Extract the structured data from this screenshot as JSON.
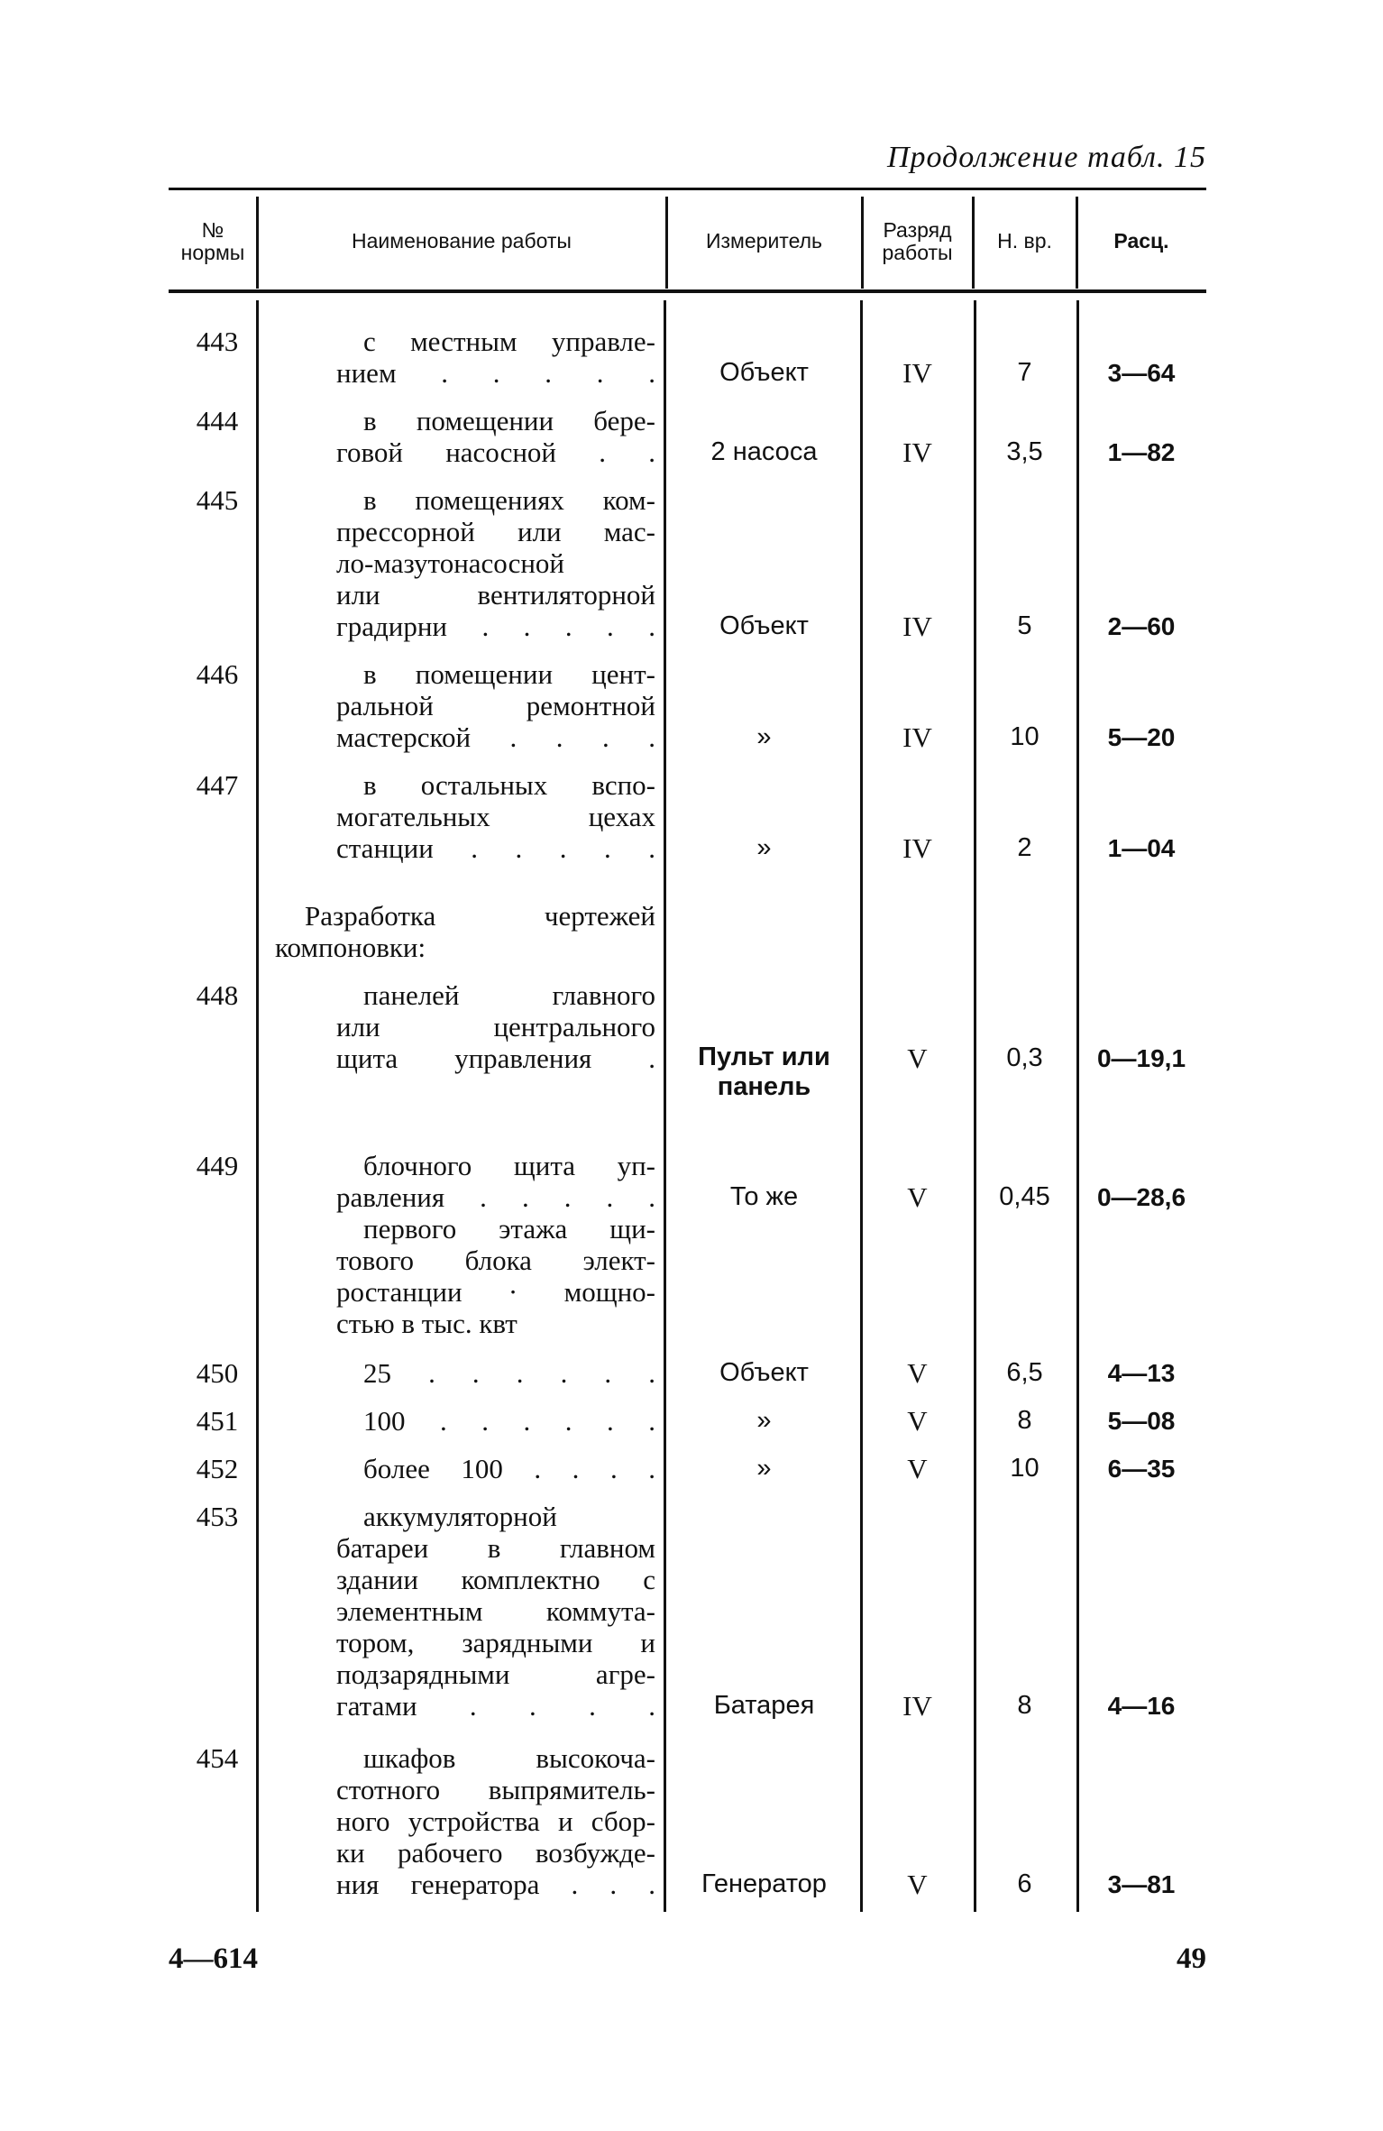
{
  "caption": "Продолжение табл. 15",
  "columns": {
    "num": [
      "№",
      "нормы"
    ],
    "name": "Наименование работы",
    "measure": "Измеритель",
    "grade": [
      "Разряд",
      "работы"
    ],
    "time": "Н. вр.",
    "rate": "Расц."
  },
  "rows": [
    {
      "num": "443",
      "desc": [
        "с местным управле-",
        "нием . . . . ."
      ],
      "measure": [
        "Объект"
      ],
      "grade": "IV",
      "time": "7",
      "rate": "3—64"
    },
    {
      "num": "444",
      "desc": [
        "в помещении бере-",
        "говой насосной . ."
      ],
      "measure": [
        "2 насоса"
      ],
      "grade": "IV",
      "time": "3,5",
      "rate": "1—82"
    },
    {
      "num": "445",
      "desc": [
        "в помещениях ком-",
        "прессорной или мас-",
        "ло-мазутонасосной",
        "или вентиляторной",
        "градирни . . . . ."
      ],
      "measure": [
        "Объект"
      ],
      "grade": "IV",
      "time": "5",
      "rate": "2—60"
    },
    {
      "num": "446",
      "desc": [
        "в помещении цент-",
        "ральной ремонтной",
        "мастерской . . . ."
      ],
      "measure": [
        "»"
      ],
      "grade": "IV",
      "time": "10",
      "rate": "5—20"
    },
    {
      "num": "447",
      "desc": [
        "в остальных вспо-",
        "могательных цехах",
        "станции . . . . ."
      ],
      "measure": [
        "»"
      ],
      "grade": "IV",
      "time": "2",
      "rate": "1—04"
    },
    {
      "num": "",
      "desc": [
        "Разработка чертежей",
        "компоновки:"
      ],
      "measure": [],
      "grade": "",
      "time": "",
      "rate": ""
    },
    {
      "num": "448",
      "desc": [
        "панелей главного",
        "или центрального",
        "щита управления ."
      ],
      "measure": [
        "Пульт или",
        "панель"
      ],
      "grade": "V",
      "time": "0,3",
      "rate": "0—19,1"
    },
    {
      "num": "449",
      "desc": [
        "блочного щита уп-",
        "равления . . . . ."
      ],
      "measure": [
        "То же"
      ],
      "grade": "V",
      "time": "0,45",
      "rate": "0—28,6"
    },
    {
      "num": "",
      "desc": [
        "первого этажа щи-",
        "тового блока элект-",
        "ростанции · мощно-",
        "стью в тыс. квт"
      ],
      "measure": [],
      "grade": "",
      "time": "",
      "rate": ""
    },
    {
      "num": "450",
      "desc": [
        "25 . . . . . ."
      ],
      "measure": [
        "Объект"
      ],
      "grade": "V",
      "time": "6,5",
      "rate": "4—13"
    },
    {
      "num": "451",
      "desc": [
        "100 . . . . . ."
      ],
      "measure": [
        "»"
      ],
      "grade": "V",
      "time": "8",
      "rate": "5—08"
    },
    {
      "num": "452",
      "desc": [
        "более 100 . . . ."
      ],
      "measure": [
        "»"
      ],
      "grade": "V",
      "time": "10",
      "rate": "6—35"
    },
    {
      "num": "453",
      "desc": [
        "аккумуляторной",
        "батареи в главном",
        "здании комплектно с",
        "элементным коммута-",
        "тором, зарядными и",
        "подзарядными агре-",
        "гатами . . . ."
      ],
      "measure": [
        "Батарея"
      ],
      "grade": "IV",
      "time": "8",
      "rate": "4—16"
    },
    {
      "num": "454",
      "desc": [
        "шкафов высокоча-",
        "стотного выпрямитель-",
        "ного устройства и сбор-",
        "ки рабочего возбужде-",
        "ния генератора . . ."
      ],
      "measure": [
        "Генератор"
      ],
      "grade": "V",
      "time": "6",
      "rate": "3—81"
    }
  ],
  "footer": {
    "left": "4—614",
    "page": "49"
  }
}
